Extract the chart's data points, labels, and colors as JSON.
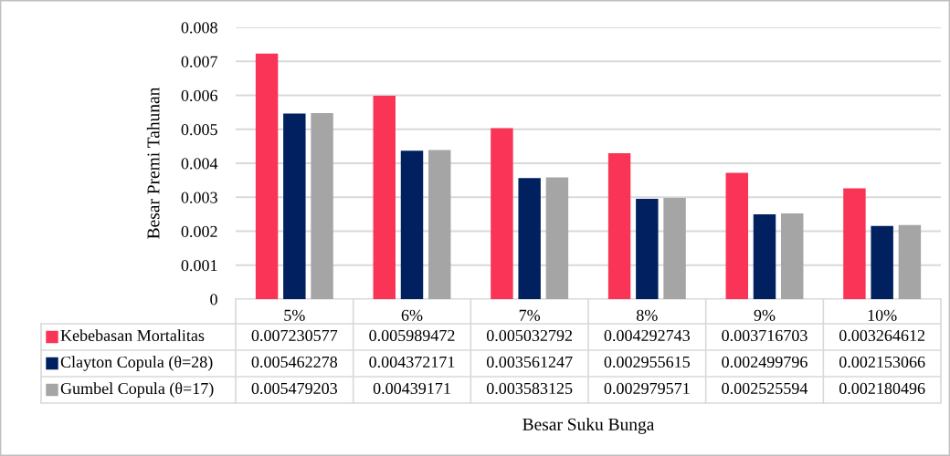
{
  "chart_data": {
    "type": "bar",
    "annotations": [
      "Besar Suku Bunga"
    ],
    "ylabel": "Besar Premi Tahunan",
    "categories": [
      "5%",
      "6%",
      "7%",
      "8%",
      "9%",
      "10%"
    ],
    "series": [
      {
        "name": "Kebebasan Mortalitas",
        "color": "#f93457",
        "values": [
          0.007230577,
          0.005989472,
          0.005032792,
          0.004292743,
          0.003716703,
          0.003264612
        ]
      },
      {
        "name": "Clayton Copula (θ=28)",
        "color": "#00205f",
        "values": [
          0.005462278,
          0.004372171,
          0.003561247,
          0.002955615,
          0.002499796,
          0.002153066
        ]
      },
      {
        "name": "Gumbel Copula (θ=17)",
        "color": "#a5a5a5",
        "values": [
          0.005479203,
          0.00439171,
          0.003583125,
          0.002979571,
          0.002525594,
          0.002180496
        ]
      }
    ],
    "ylim": [
      0,
      0.008
    ],
    "yticks": [
      0,
      0.001,
      0.002,
      0.003,
      0.004,
      0.005,
      0.006,
      0.007,
      0.008
    ],
    "grid": "y",
    "legend": "bottom",
    "data_labels": true
  }
}
